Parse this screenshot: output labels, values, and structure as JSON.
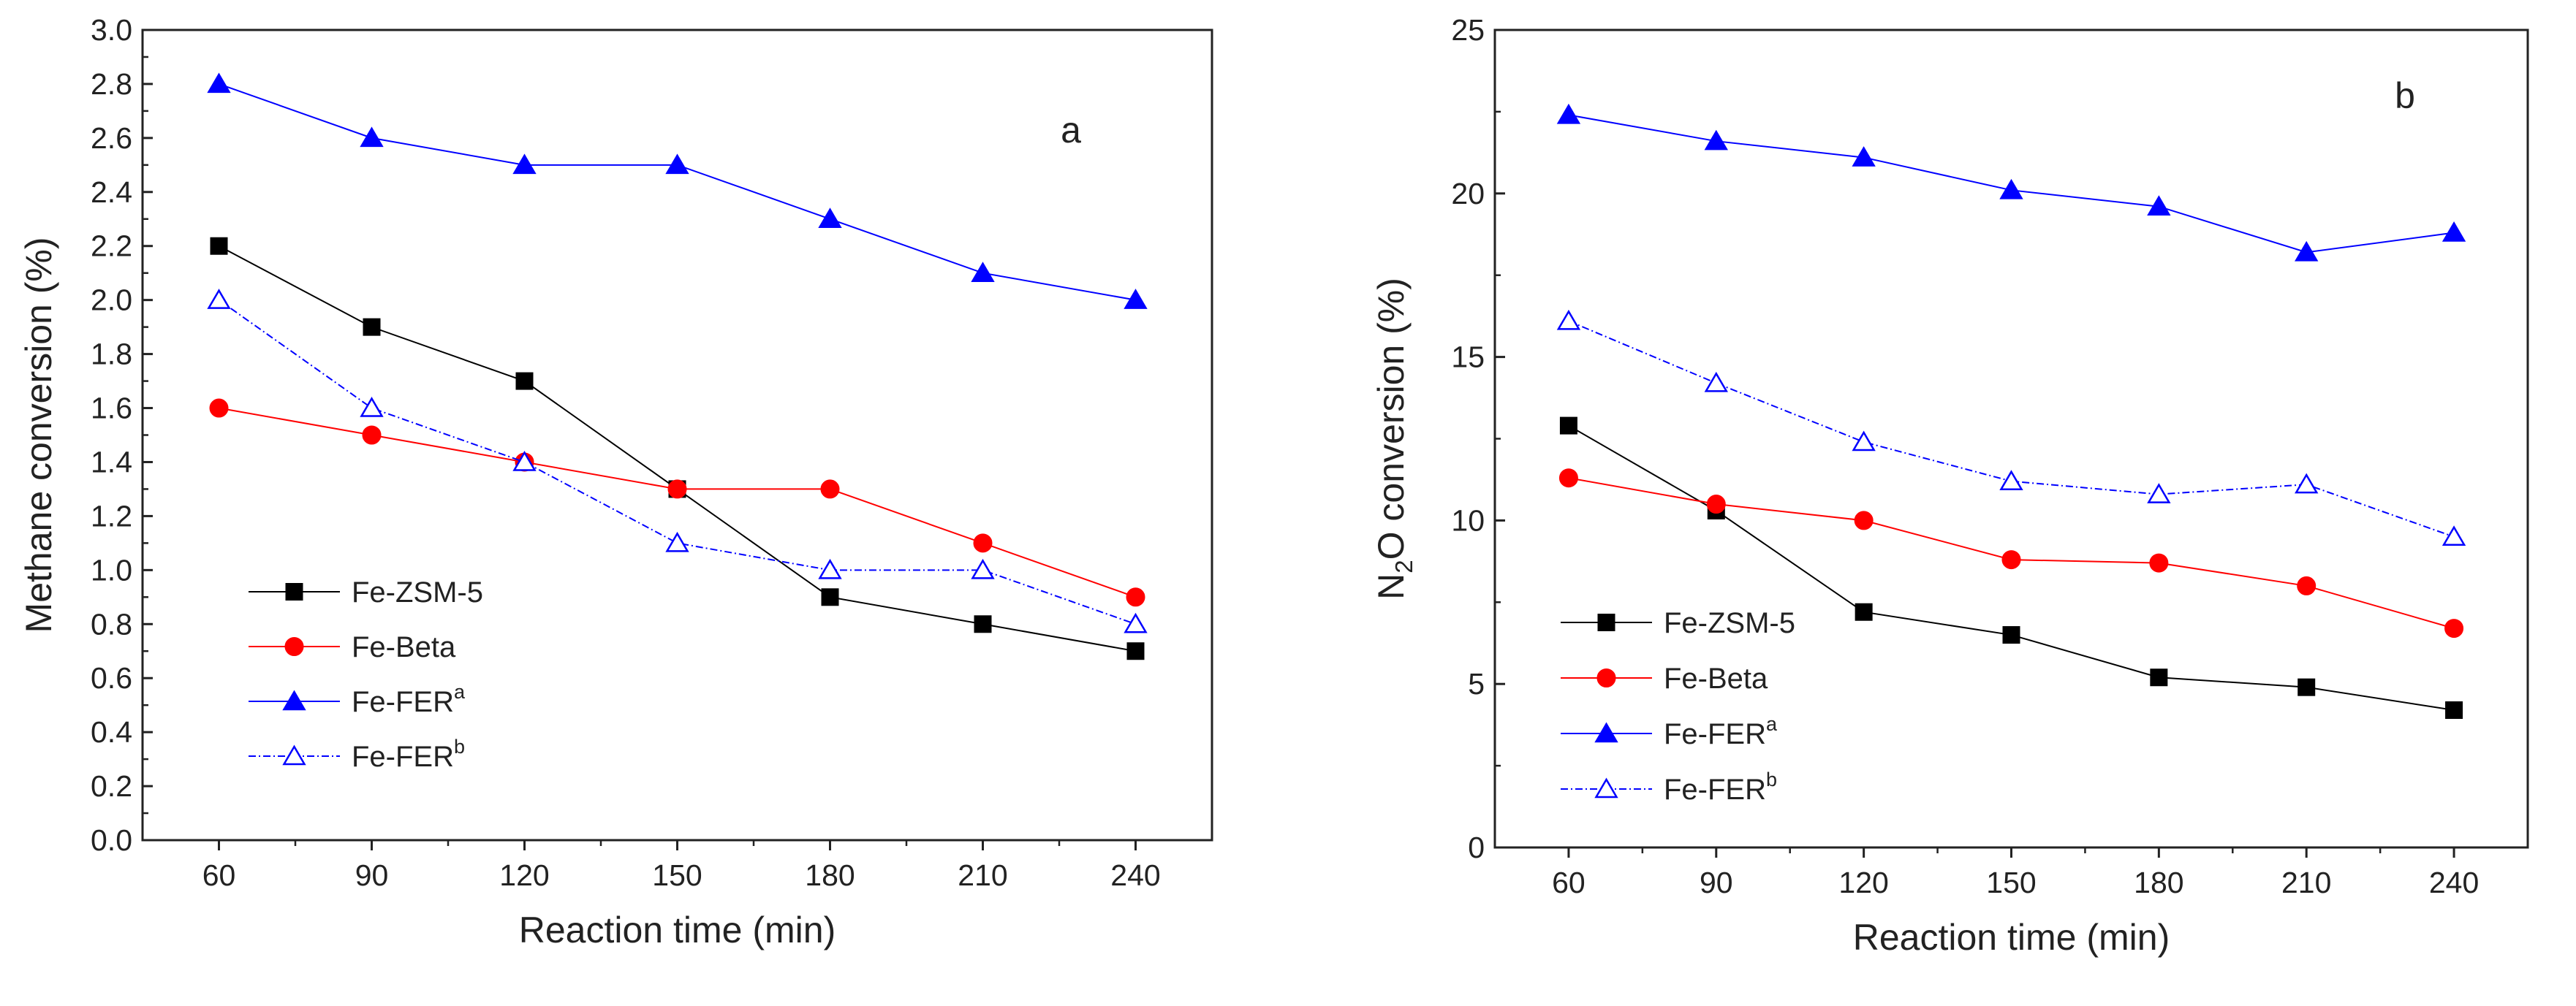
{
  "chart_data": [
    {
      "type": "line",
      "panel_label": "a",
      "xlabel": "Reaction time (min)",
      "ylabel": "Methane conversion (%)",
      "x": [
        60,
        90,
        120,
        150,
        180,
        210,
        240
      ],
      "xticks": [
        "60",
        "90",
        "120",
        "150",
        "180",
        "210",
        "240"
      ],
      "xlim": [
        45,
        255
      ],
      "ylim": [
        0,
        3.0
      ],
      "yticks": [
        "0.0",
        "0.2",
        "0.4",
        "0.6",
        "0.8",
        "1.0",
        "1.2",
        "1.4",
        "1.6",
        "1.8",
        "2.0",
        "2.2",
        "2.4",
        "2.6",
        "2.8",
        "3.0"
      ],
      "legend_position": "bottom-left",
      "series": [
        {
          "name": "Fe-ZSM-5",
          "sup": "",
          "color": "#000000",
          "marker": "square",
          "filled": true,
          "dashed": false,
          "values": [
            2.2,
            1.9,
            1.7,
            1.3,
            0.9,
            0.8,
            0.7
          ]
        },
        {
          "name": "Fe-Beta",
          "sup": "",
          "color": "#ff0000",
          "marker": "circle",
          "filled": true,
          "dashed": false,
          "values": [
            1.6,
            1.5,
            1.4,
            1.3,
            1.3,
            1.1,
            0.9
          ]
        },
        {
          "name": "Fe-FER",
          "sup": "a",
          "color": "#0000ff",
          "marker": "triangle",
          "filled": true,
          "dashed": false,
          "values": [
            2.8,
            2.6,
            2.5,
            2.5,
            2.3,
            2.1,
            2.0
          ]
        },
        {
          "name": "Fe-FER",
          "sup": "b",
          "color": "#0000ff",
          "marker": "triangle",
          "filled": false,
          "dashed": true,
          "values": [
            2.0,
            1.6,
            1.4,
            1.1,
            1.0,
            1.0,
            0.8
          ]
        }
      ]
    },
    {
      "type": "line",
      "panel_label": "b",
      "xlabel": "Reaction time (min)",
      "ylabel_main": "N",
      "ylabel_sub": "2",
      "ylabel_rest": "O conversion (%)",
      "x": [
        60,
        90,
        120,
        150,
        180,
        210,
        240
      ],
      "xticks": [
        "60",
        "90",
        "120",
        "150",
        "180",
        "210",
        "240"
      ],
      "xlim": [
        45,
        255
      ],
      "ylim": [
        0,
        25
      ],
      "yticks": [
        "0",
        "5",
        "10",
        "15",
        "20",
        "25"
      ],
      "legend_position": "bottom-left",
      "series": [
        {
          "name": "Fe-ZSM-5",
          "sup": "",
          "color": "#000000",
          "marker": "square",
          "filled": true,
          "dashed": false,
          "values": [
            12.9,
            10.3,
            7.2,
            6.5,
            5.2,
            4.9,
            4.2
          ]
        },
        {
          "name": "Fe-Beta",
          "sup": "",
          "color": "#ff0000",
          "marker": "circle",
          "filled": true,
          "dashed": false,
          "values": [
            11.3,
            10.5,
            10.0,
            8.8,
            8.7,
            8.0,
            6.7
          ]
        },
        {
          "name": "Fe-FER",
          "sup": "a",
          "color": "#0000ff",
          "marker": "triangle",
          "filled": true,
          "dashed": false,
          "values": [
            22.4,
            21.6,
            21.1,
            20.1,
            19.6,
            18.2,
            18.8
          ]
        },
        {
          "name": "Fe-FER",
          "sup": "b",
          "color": "#0000ff",
          "marker": "triangle",
          "filled": false,
          "dashed": true,
          "values": [
            16.1,
            14.2,
            12.4,
            11.2,
            10.8,
            11.1,
            9.5
          ]
        }
      ]
    }
  ]
}
